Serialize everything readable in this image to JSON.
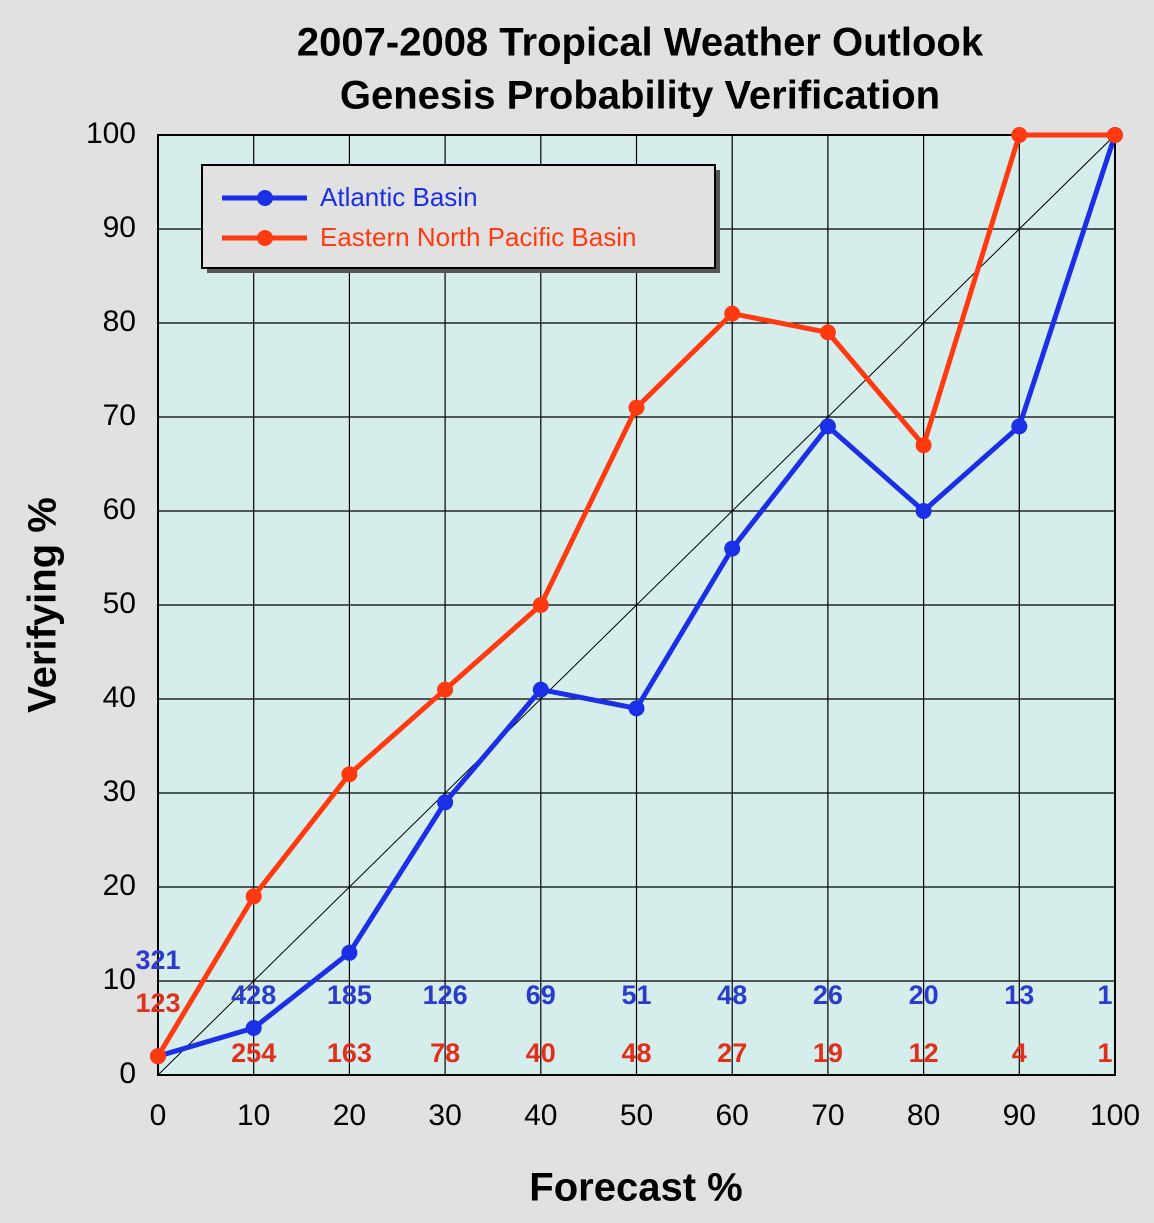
{
  "chart_data": {
    "type": "line",
    "title": "2007-2008 Tropical Weather Outlook",
    "subtitle": "Genesis Probability Verification",
    "x_label": "Forecast %",
    "y_label": "Verifying %",
    "x": [
      0,
      10,
      20,
      30,
      40,
      50,
      60,
      70,
      80,
      90,
      100
    ],
    "series": [
      {
        "name": "Atlantic Basin",
        "color": "#1a2fe6",
        "label_color": "#2b3ccc",
        "values": [
          2,
          5,
          13,
          29,
          41,
          39,
          56,
          69,
          60,
          69,
          100
        ],
        "sample_counts": [
          321,
          428,
          185,
          126,
          69,
          51,
          48,
          26,
          20,
          13,
          1
        ]
      },
      {
        "name": "Eastern North Pacific Basin",
        "color": "#ff3a10",
        "label_color": "#e0301c",
        "values": [
          2,
          19,
          32,
          41,
          50,
          71,
          81,
          79,
          67,
          100,
          100
        ],
        "sample_counts": [
          123,
          254,
          163,
          78,
          40,
          48,
          27,
          19,
          12,
          4,
          1
        ]
      }
    ],
    "xlim": [
      0,
      100
    ],
    "ylim": [
      0,
      100
    ],
    "xticks": [
      0,
      10,
      20,
      30,
      40,
      50,
      60,
      70,
      80,
      90,
      100
    ],
    "yticks": [
      0,
      10,
      20,
      30,
      40,
      50,
      60,
      70,
      80,
      90,
      100
    ],
    "grid": true,
    "legend": "upper left",
    "diagonal": true
  }
}
